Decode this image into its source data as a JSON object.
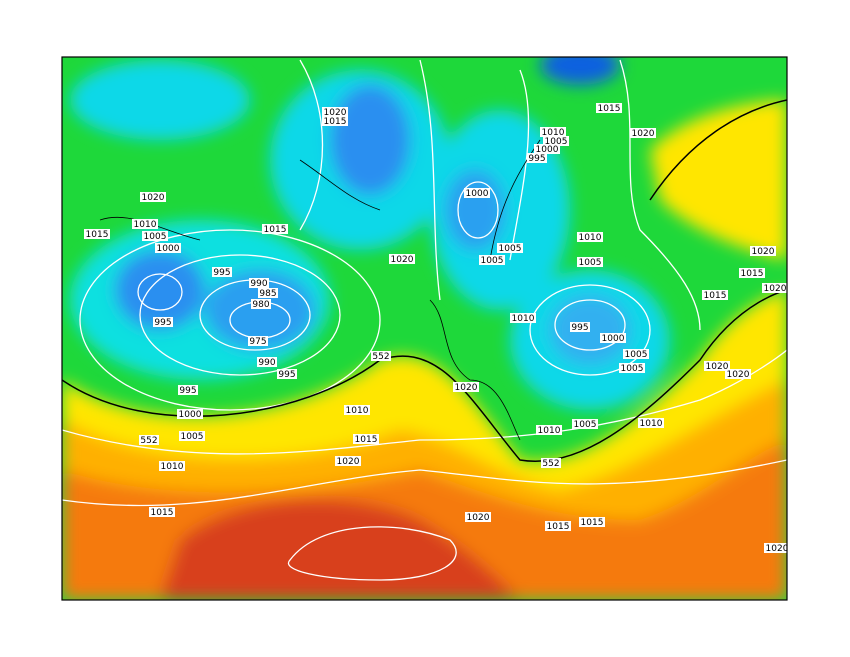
{
  "map": {
    "isobar_labels": [
      "1020",
      "1015",
      "1015",
      "1020",
      "1010",
      "1005",
      "1000",
      "995",
      "1020",
      "1010",
      "1015",
      "1005",
      "1000",
      "1015",
      "1000",
      "1020",
      "1005",
      "1005",
      "1010",
      "1005",
      "1020",
      "1015",
      "1020",
      "995",
      "990",
      "985",
      "980",
      "995",
      "975",
      "1015",
      "1010",
      "995",
      "1000",
      "1005",
      "1005",
      "552",
      "990",
      "995",
      "1020",
      "1020",
      "995",
      "1020",
      "1000",
      "1010",
      "552",
      "1005",
      "1015",
      "1010",
      "1005",
      "1010",
      "1020",
      "1010",
      "552",
      "1015",
      "1020",
      "1015",
      "1015",
      "1020"
    ]
  }
}
